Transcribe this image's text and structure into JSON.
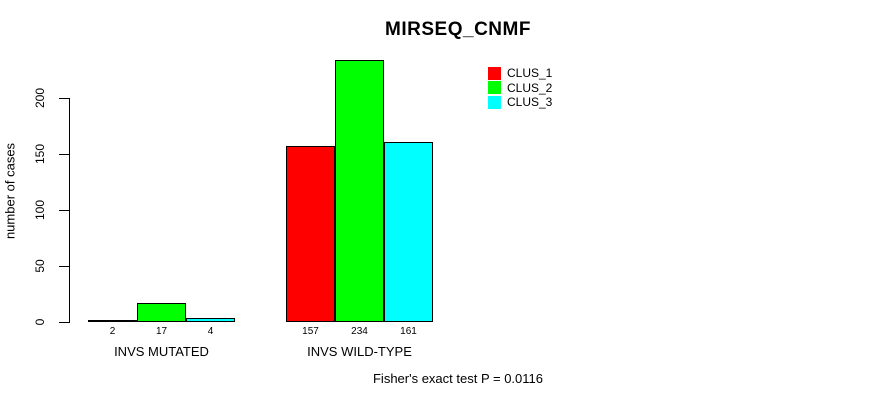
{
  "chart_data": {
    "type": "bar",
    "title": "MIRSEQ_CNMF",
    "xlabel": "",
    "ylabel": "number of cases",
    "categories": [
      "INVS MUTATED",
      "INVS WILD-TYPE"
    ],
    "series": [
      {
        "name": "CLUS_1",
        "color": "#ff0000",
        "values": [
          2,
          157
        ]
      },
      {
        "name": "CLUS_2",
        "color": "#00ff00",
        "values": [
          17,
          234
        ]
      },
      {
        "name": "CLUS_3",
        "color": "#00ffff",
        "values": [
          4,
          161
        ]
      }
    ],
    "yticks": [
      0,
      50,
      100,
      150,
      200
    ],
    "ylim": [
      0,
      234
    ],
    "grid": false,
    "legend_position": "top-right-inside",
    "bar_border_color": "#000000",
    "annotation": "Fisher's exact test P = 0.0116"
  }
}
